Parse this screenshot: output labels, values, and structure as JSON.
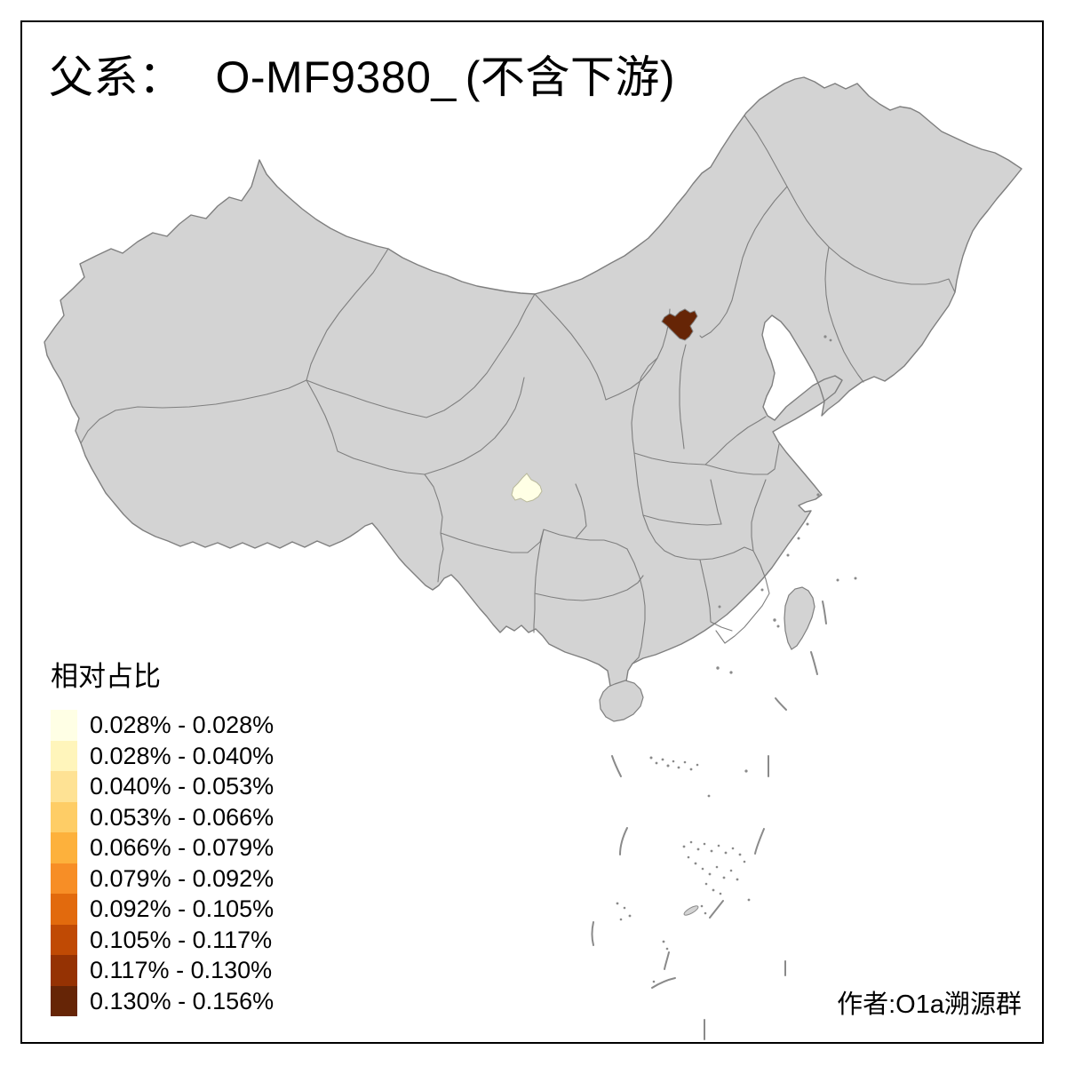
{
  "title": {
    "prefix": "父系：",
    "code": "O-MF9380_",
    "suffix": "(不含下游)",
    "full": "父系： O-MF9380_ (不含下游)"
  },
  "legend": {
    "title": "相对占比",
    "classes": [
      {
        "label": "0.028% - 0.028%",
        "color": "#FFFFE5"
      },
      {
        "label": "0.028% - 0.040%",
        "color": "#FFF5BB"
      },
      {
        "label": "0.040% - 0.053%",
        "color": "#FEE294"
      },
      {
        "label": "0.053% - 0.066%",
        "color": "#FECD66"
      },
      {
        "label": "0.066% - 0.079%",
        "color": "#FDB13C"
      },
      {
        "label": "0.079% - 0.092%",
        "color": "#F78E26"
      },
      {
        "label": "0.092% - 0.105%",
        "color": "#E26A0D"
      },
      {
        "label": "0.105% - 0.117%",
        "color": "#C04A04"
      },
      {
        "label": "0.117% - 0.130%",
        "color": "#953203"
      },
      {
        "label": "0.130% - 0.156%",
        "color": "#662506"
      }
    ]
  },
  "map": {
    "land_color": "#D3D3D3",
    "border_color": "#7F7F7F",
    "sea_color": "#FFFFFF",
    "highlighted_regions": [
      {
        "id": "dark-brown-region",
        "location": "north-china",
        "class_index": 9
      },
      {
        "id": "pale-cream-region",
        "location": "southwest-china",
        "class_index": 0
      }
    ]
  },
  "attribution": "作者:O1a溯源群",
  "chart_data": {
    "type": "choropleth-map",
    "title": "父系： O-MF9380_ (不含下游)",
    "legend_title": "相对占比",
    "class_breaks": [
      "0.028% - 0.028%",
      "0.028% - 0.040%",
      "0.040% - 0.053%",
      "0.053% - 0.066%",
      "0.066% - 0.079%",
      "0.079% - 0.092%",
      "0.092% - 0.105%",
      "0.105% - 0.117%",
      "0.117% - 0.130%",
      "0.130% - 0.156%"
    ],
    "class_colors": [
      "#FFFFE5",
      "#FFF5BB",
      "#FEE294",
      "#FECD66",
      "#FDB13C",
      "#F78E26",
      "#E26A0D",
      "#C04A04",
      "#953203",
      "#662506"
    ],
    "highlighted_regions": [
      {
        "region": "dark-brown-region",
        "value_range": "0.130% - 0.156%"
      },
      {
        "region": "pale-cream-region",
        "value_range": "0.028% - 0.028%"
      }
    ],
    "other_regions": "gray (no highlighted value)",
    "attribution": "作者:O1a溯源群"
  }
}
